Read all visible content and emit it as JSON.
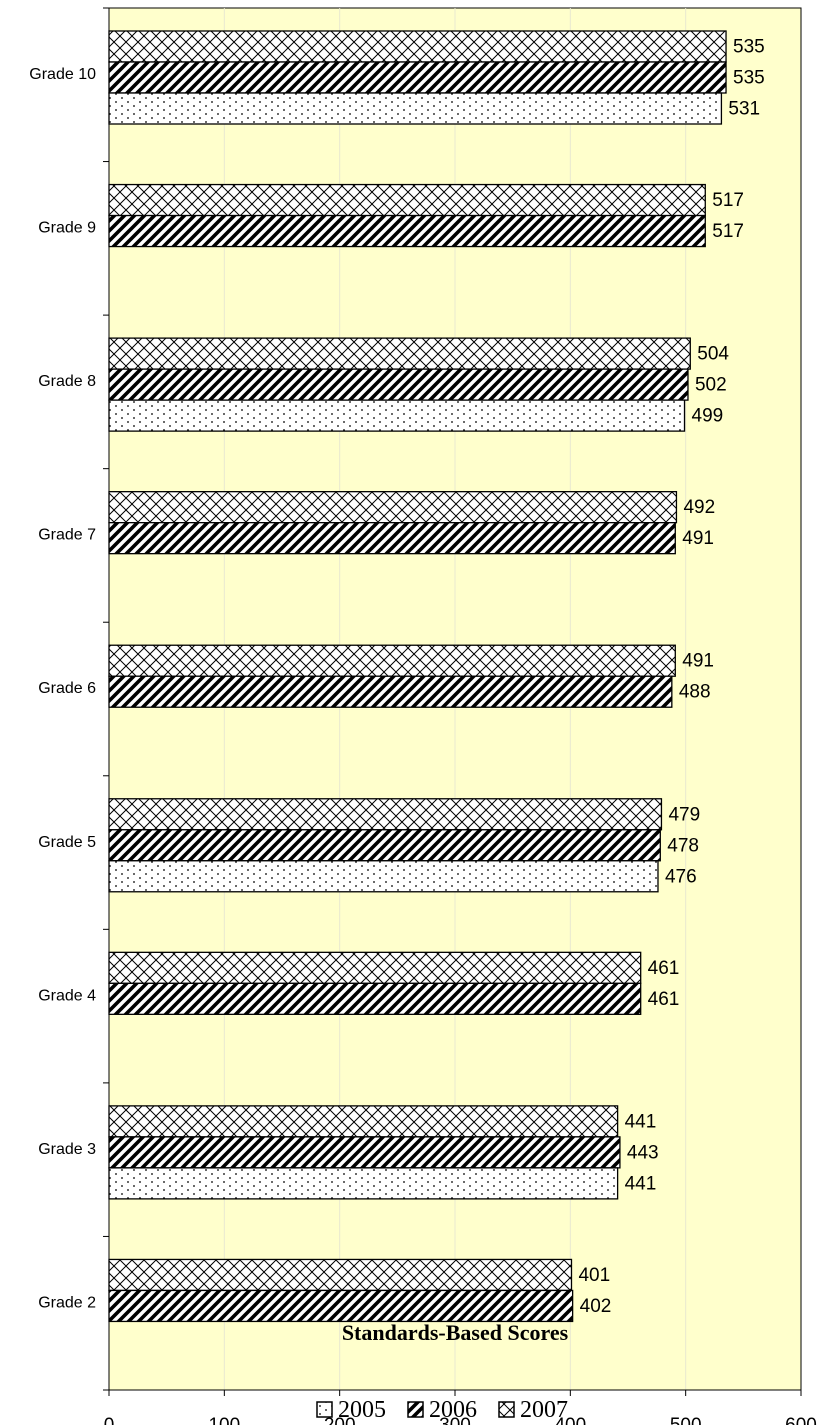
{
  "chart_data": {
    "type": "bar",
    "orientation": "horizontal",
    "title": "",
    "xlabel": "Standards-Based Scores",
    "ylabel": "",
    "xlim": [
      0,
      600
    ],
    "xticks": [
      0,
      100,
      200,
      300,
      400,
      500,
      600
    ],
    "grid": "vertical, faint",
    "plot_background": "#ffffcc",
    "legend_position": "bottom",
    "categories": [
      "Grade 10",
      "Grade 9",
      "Grade 8",
      "Grade 7",
      "Grade 6",
      "Grade 5",
      "Grade 4",
      "Grade 3",
      "Grade 2"
    ],
    "series": [
      {
        "name": "2007",
        "pattern": "crosshatch",
        "values": [
          535,
          517,
          504,
          492,
          491,
          479,
          461,
          441,
          401
        ]
      },
      {
        "name": "2006",
        "pattern": "diagonal",
        "values": [
          535,
          517,
          502,
          491,
          488,
          478,
          461,
          443,
          402
        ]
      },
      {
        "name": "2005",
        "pattern": "dots",
        "values": [
          531,
          null,
          499,
          null,
          null,
          476,
          null,
          441,
          null
        ]
      }
    ],
    "legend_order": [
      "2005",
      "2006",
      "2007"
    ]
  }
}
